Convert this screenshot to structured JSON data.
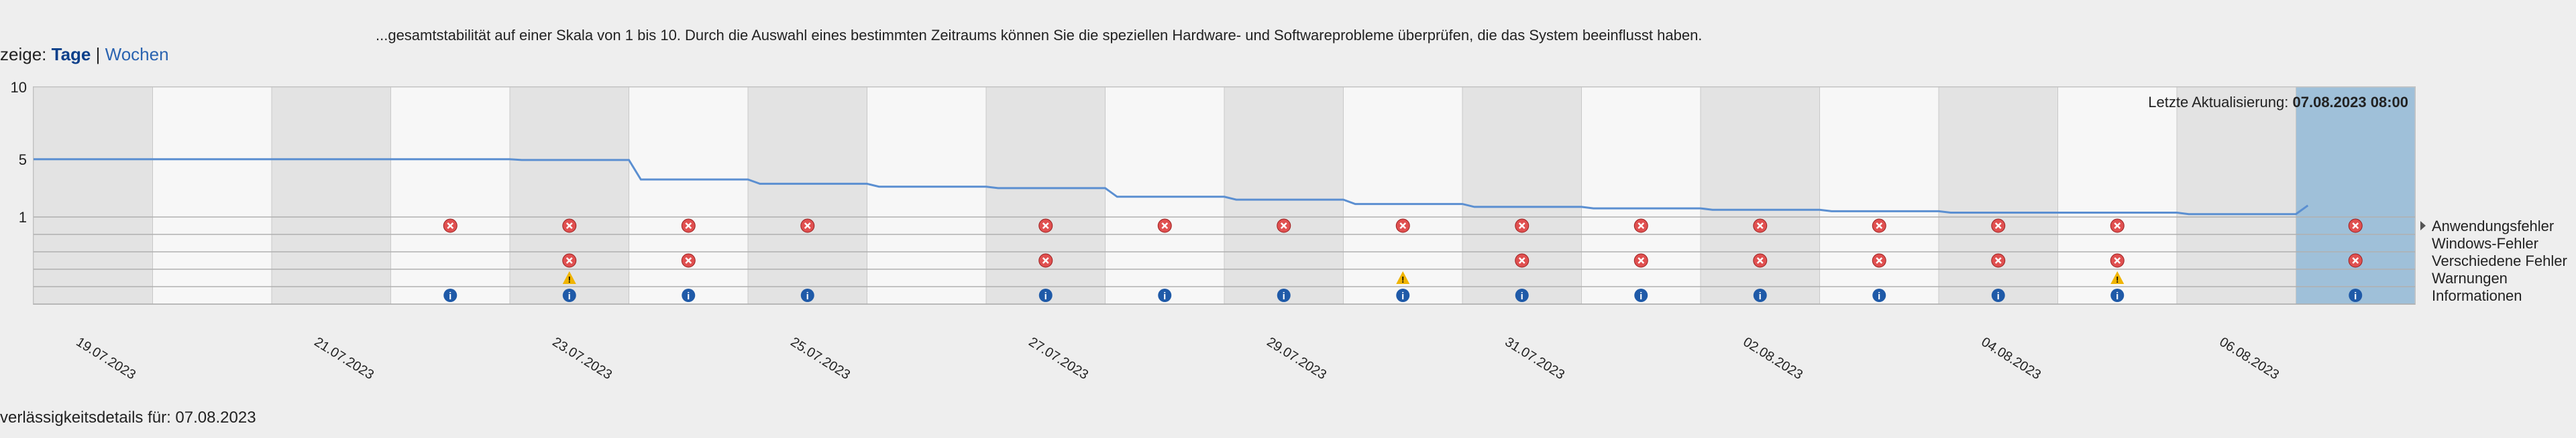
{
  "header": {
    "intro_text": "...gesamtstabilität auf einer Skala von 1 bis 10. Durch die Auswahl eines bestimmten Zeitraums können Sie die speziellen Hardware- und Softwareprobleme überprüfen, die das System beeinflusst haben."
  },
  "view_toggle": {
    "label": "zeige:",
    "days": "Tage",
    "separator": "|",
    "weeks": "Wochen"
  },
  "last_update": {
    "label": "Letzte Aktualisierung:",
    "value": "07.08.2023 08:00"
  },
  "details_label": "verlässigkeitsdetails für: 07.08.2023",
  "colors": {
    "line": "#5b8fd1",
    "error": "#e05050",
    "warning": "#f0b400",
    "info": "#1f5aa8",
    "selected": "#9fc0d9"
  },
  "chart_data": {
    "type": "line",
    "y_axis": {
      "ticks": [
        "10",
        "5",
        "1"
      ],
      "ylim": [
        1,
        10
      ]
    },
    "columns": 20,
    "selected_column": 19,
    "stability_index": [
      5.0,
      5.0,
      5.0,
      5.0,
      4.95,
      3.6,
      3.3,
      3.1,
      3.0,
      2.4,
      2.2,
      1.9,
      1.7,
      1.6,
      1.5,
      1.4,
      1.3,
      1.3,
      1.2,
      1.8
    ],
    "date_labels": [
      {
        "col": 0,
        "text": "19.07.2023"
      },
      {
        "col": 2,
        "text": "21.07.2023"
      },
      {
        "col": 4,
        "text": "23.07.2023"
      },
      {
        "col": 6,
        "text": "25.07.2023"
      },
      {
        "col": 8,
        "text": "27.07.2023"
      },
      {
        "col": 10,
        "text": "29.07.2023"
      },
      {
        "col": 12,
        "text": "31.07.2023"
      },
      {
        "col": 14,
        "text": "02.08.2023"
      },
      {
        "col": 16,
        "text": "04.08.2023"
      },
      {
        "col": 18,
        "text": "06.08.2023"
      }
    ],
    "event_rows": [
      {
        "name": "Anwendungsfehler",
        "icon": "error",
        "cols": [
          3,
          4,
          5,
          6,
          8,
          9,
          10,
          11,
          12,
          13,
          14,
          15,
          16,
          17,
          19
        ]
      },
      {
        "name": "Windows-Fehler",
        "icon": "error",
        "cols": []
      },
      {
        "name": "Verschiedene Fehler",
        "icon": "error",
        "cols": [
          4,
          5,
          8,
          12,
          13,
          14,
          15,
          16,
          17,
          19
        ]
      },
      {
        "name": "Warnungen",
        "icon": "warning",
        "cols": [
          4,
          11,
          17
        ]
      },
      {
        "name": "Informationen",
        "icon": "info",
        "cols": [
          3,
          4,
          5,
          6,
          8,
          9,
          10,
          11,
          12,
          13,
          14,
          15,
          16,
          17,
          19
        ]
      }
    ]
  }
}
